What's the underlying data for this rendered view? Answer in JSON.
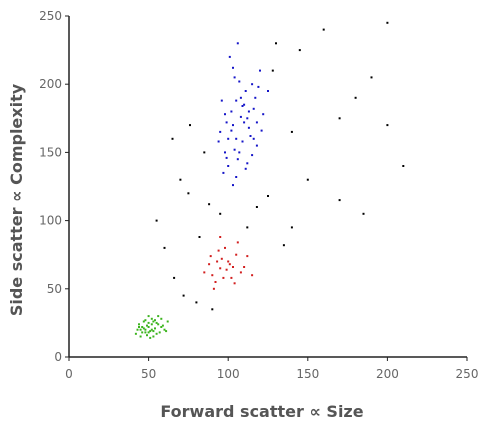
{
  "chart_data": {
    "type": "scatter",
    "title": "",
    "xlabel": "Forward scatter ∝ Size",
    "ylabel": "Side scatter ∝ Complexity",
    "xlim": [
      0,
      250
    ],
    "ylim": [
      0,
      250
    ],
    "x_ticks": [
      "0",
      "50",
      "100",
      "150",
      "200",
      "250"
    ],
    "y_ticks": [
      "0",
      "50",
      "100",
      "150",
      "200",
      "250"
    ],
    "grid": false,
    "legend": "none",
    "series": [
      {
        "color": "#1414c8",
        "points": [
          [
            103,
            170
          ],
          [
            110,
            185
          ],
          [
            98,
            150
          ],
          [
            115,
            200
          ],
          [
            105,
            160
          ],
          [
            112,
            175
          ],
          [
            100,
            140
          ],
          [
            108,
            190
          ],
          [
            120,
            210
          ],
          [
            95,
            165
          ],
          [
            102,
            180
          ],
          [
            118,
            155
          ],
          [
            106,
            145
          ],
          [
            111,
            195
          ],
          [
            99,
            172
          ],
          [
            113,
            168
          ],
          [
            104,
            205
          ],
          [
            97,
            135
          ],
          [
            116,
            182
          ],
          [
            109,
            158
          ],
          [
            101,
            220
          ],
          [
            122,
            178
          ],
          [
            107,
            150
          ],
          [
            114,
            162
          ],
          [
            96,
            188
          ],
          [
            119,
            198
          ],
          [
            105,
            132
          ],
          [
            110,
            172
          ],
          [
            103,
            212
          ],
          [
            115,
            148
          ],
          [
            108,
            176
          ],
          [
            100,
            160
          ],
          [
            117,
            190
          ],
          [
            98,
            178
          ],
          [
            112,
            142
          ],
          [
            106,
            230
          ],
          [
            121,
            166
          ],
          [
            104,
            152
          ],
          [
            109,
            184
          ],
          [
            102,
            166
          ],
          [
            125,
            195
          ],
          [
            94,
            158
          ],
          [
            111,
            138
          ],
          [
            107,
            202
          ],
          [
            113,
            180
          ],
          [
            99,
            146
          ],
          [
            118,
            172
          ],
          [
            105,
            188
          ],
          [
            103,
            126
          ],
          [
            116,
            160
          ]
        ]
      },
      {
        "color": "#d21e1e",
        "points": [
          [
            95,
            65
          ],
          [
            100,
            70
          ],
          [
            90,
            60
          ],
          [
            105,
            75
          ],
          [
            92,
            55
          ],
          [
            98,
            80
          ],
          [
            108,
            62
          ],
          [
            88,
            68
          ],
          [
            102,
            58
          ],
          [
            96,
            72
          ],
          [
            110,
            66
          ],
          [
            85,
            62
          ],
          [
            94,
            78
          ],
          [
            104,
            54
          ],
          [
            99,
            64
          ],
          [
            112,
            74
          ],
          [
            91,
            50
          ],
          [
            106,
            84
          ],
          [
            97,
            58
          ],
          [
            101,
            68
          ],
          [
            93,
            70
          ],
          [
            115,
            60
          ],
          [
            89,
            74
          ],
          [
            103,
            66
          ],
          [
            95,
            88
          ]
        ]
      },
      {
        "color": "#3cb41e",
        "points": [
          [
            50,
            22
          ],
          [
            48,
            18
          ],
          [
            55,
            25
          ],
          [
            45,
            20
          ],
          [
            52,
            28
          ],
          [
            58,
            22
          ],
          [
            42,
            17
          ],
          [
            53,
            15
          ],
          [
            47,
            26
          ],
          [
            60,
            20
          ],
          [
            51,
            19
          ],
          [
            44,
            24
          ],
          [
            56,
            30
          ],
          [
            49,
            16
          ],
          [
            54,
            21
          ],
          [
            46,
            22
          ],
          [
            62,
            26
          ],
          [
            50,
            30
          ],
          [
            57,
            18
          ],
          [
            43,
            20
          ],
          [
            52,
            24
          ],
          [
            48,
            27
          ],
          [
            59,
            23
          ],
          [
            53,
            19
          ],
          [
            45,
            15
          ],
          [
            55,
            17
          ],
          [
            50,
            25
          ],
          [
            47,
            21
          ],
          [
            61,
            19
          ],
          [
            54,
            27
          ],
          [
            49,
            23
          ],
          [
            51,
            14
          ],
          [
            46,
            18
          ],
          [
            58,
            28
          ],
          [
            52,
            20
          ],
          [
            44,
            22
          ],
          [
            56,
            24
          ],
          [
            48,
            20
          ],
          [
            53,
            26
          ],
          [
            50,
            18
          ]
        ]
      },
      {
        "color": "#000000",
        "points": [
          [
            55,
            100
          ],
          [
            70,
            130
          ],
          [
            85,
            150
          ],
          [
            128,
            210
          ],
          [
            145,
            225
          ],
          [
            170,
            175
          ],
          [
            190,
            205
          ],
          [
            200,
            170
          ],
          [
            80,
            40
          ],
          [
            90,
            35
          ],
          [
            130,
            230
          ],
          [
            75,
            120
          ],
          [
            160,
            240
          ],
          [
            60,
            80
          ],
          [
            118,
            110
          ],
          [
            140,
            95
          ],
          [
            82,
            88
          ],
          [
            66,
            58
          ],
          [
            210,
            140
          ],
          [
            150,
            130
          ],
          [
            76,
            170
          ],
          [
            185,
            105
          ],
          [
            125,
            118
          ],
          [
            95,
            105
          ],
          [
            135,
            82
          ],
          [
            180,
            190
          ],
          [
            65,
            160
          ],
          [
            88,
            112
          ],
          [
            170,
            115
          ],
          [
            200,
            245
          ],
          [
            72,
            45
          ],
          [
            112,
            95
          ],
          [
            140,
            165
          ]
        ]
      }
    ]
  }
}
